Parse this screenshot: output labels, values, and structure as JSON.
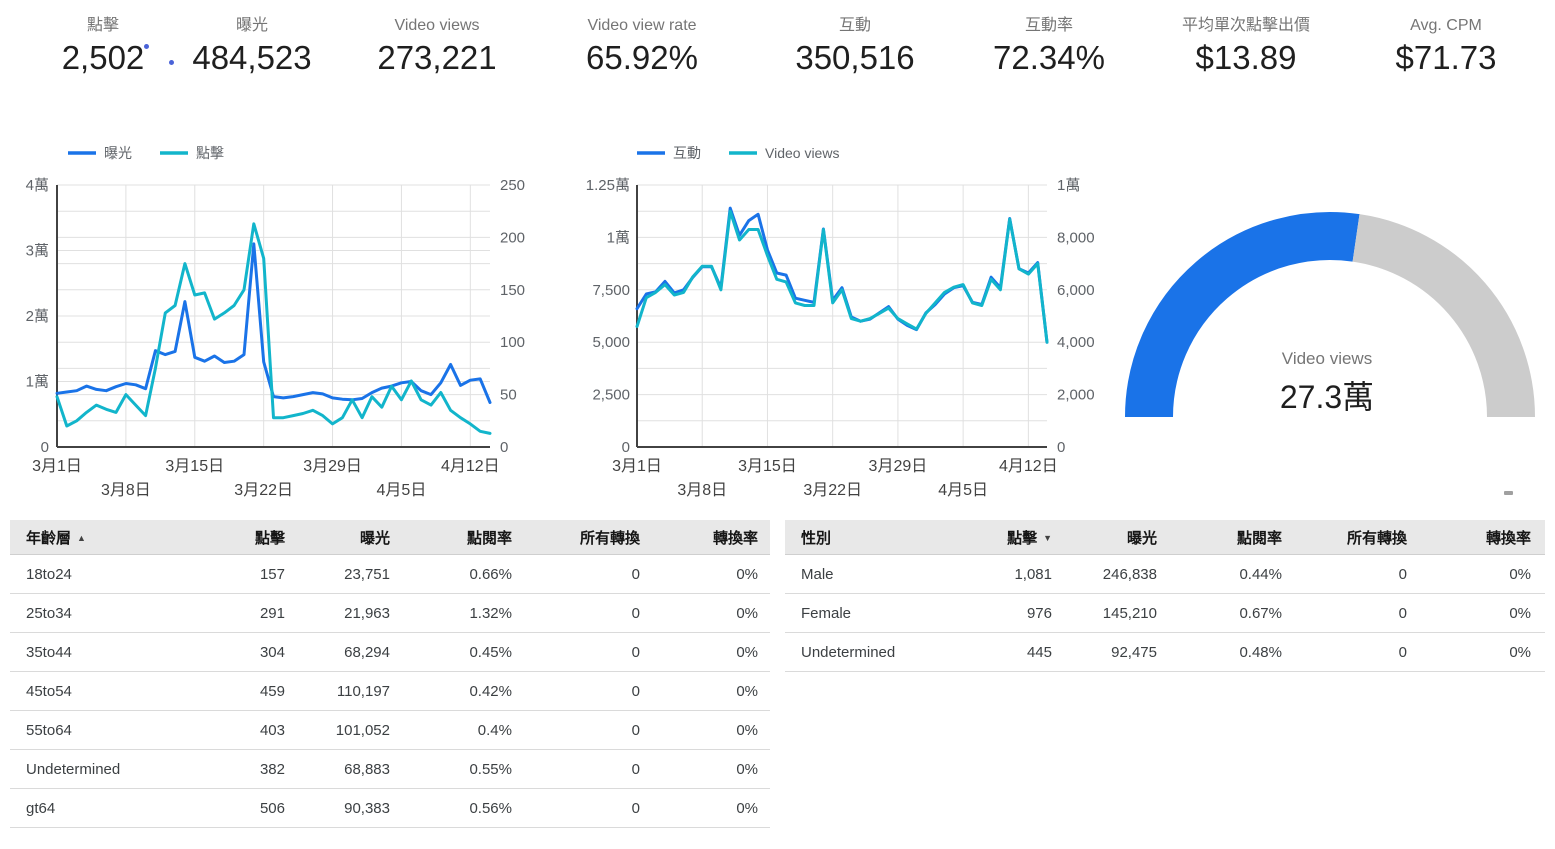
{
  "scorecards": [
    {
      "label": "點擊",
      "value": "2,502"
    },
    {
      "label": "曝光",
      "value": "484,523"
    },
    {
      "label": "Video views",
      "value": "273,221"
    },
    {
      "label": "Video view rate",
      "value": "65.92%"
    },
    {
      "label": "互動",
      "value": "350,516"
    },
    {
      "label": "互動率",
      "value": "72.34%"
    },
    {
      "label": "平均單次點擊出價",
      "value": "$13.89"
    },
    {
      "label": "Avg. CPM",
      "value": "$71.73"
    }
  ],
  "icons": {
    "sort_asc": "▲",
    "sort_desc": "▼",
    "note_dot": "circle"
  },
  "colors": {
    "blue": "#1a73e8",
    "teal": "#12b5cb",
    "grid": "#e0e0e0",
    "axis": "#424242",
    "gauge_blue": "#1a73e8",
    "gauge_track": "#cccccc",
    "label_gray": "#757575",
    "header_bg": "#e8e8e8"
  },
  "chart_data": [
    {
      "type": "line",
      "name": "impressions-clicks-timeseries",
      "days": 45,
      "legend": [
        {
          "label": "曝光",
          "color": "#1a73e8"
        },
        {
          "label": "點擊",
          "color": "#12b5cb"
        }
      ],
      "x_ticks": [
        {
          "label": "3月1日",
          "day": 0,
          "row": 0
        },
        {
          "label": "3月8日",
          "day": 7,
          "row": 1
        },
        {
          "label": "3月15日",
          "day": 14,
          "row": 0
        },
        {
          "label": "3月22日",
          "day": 21,
          "row": 1
        },
        {
          "label": "3月29日",
          "day": 28,
          "row": 0
        },
        {
          "label": "4月5日",
          "day": 35,
          "row": 1
        },
        {
          "label": "4月12日",
          "day": 42,
          "row": 0
        }
      ],
      "left_axis": {
        "max": 40000,
        "ticks": [
          {
            "label": "0",
            "pct": 0
          },
          {
            "label": "1萬",
            "pct": 25
          },
          {
            "label": "2萬",
            "pct": 50
          },
          {
            "label": "3萬",
            "pct": 75
          },
          {
            "label": "4萬",
            "pct": 100
          }
        ]
      },
      "right_axis": {
        "max": 250,
        "ticks": [
          {
            "label": "0",
            "pct": 0
          },
          {
            "label": "50",
            "pct": 20
          },
          {
            "label": "100",
            "pct": 40
          },
          {
            "label": "150",
            "pct": 60
          },
          {
            "label": "200",
            "pct": 80
          },
          {
            "label": "250",
            "pct": 100
          }
        ]
      },
      "grid_pcts": [
        10,
        20,
        25,
        30,
        40,
        50,
        60,
        70,
        75,
        80,
        90,
        100
      ],
      "series": [
        {
          "name": "曝光",
          "axis": "left",
          "color": "#1a73e8",
          "values": [
            8200,
            8400,
            8600,
            9300,
            8800,
            8600,
            9200,
            9700,
            9500,
            8900,
            14700,
            14100,
            14600,
            22200,
            13700,
            13100,
            13900,
            12900,
            13100,
            14100,
            31000,
            13000,
            7700,
            7500,
            7700,
            8000,
            8300,
            8100,
            7500,
            7300,
            7200,
            7400,
            8300,
            9000,
            9300,
            9800,
            10000,
            8600,
            8000,
            9800,
            12600,
            9400,
            10200,
            10400,
            6800
          ]
        },
        {
          "name": "點擊",
          "axis": "right",
          "color": "#12b5cb",
          "values": [
            48,
            20,
            25,
            33,
            40,
            36,
            33,
            50,
            40,
            30,
            75,
            128,
            135,
            175,
            145,
            147,
            122,
            128,
            135,
            150,
            213,
            180,
            28,
            28,
            30,
            32,
            35,
            30,
            22,
            28,
            45,
            28,
            48,
            38,
            58,
            45,
            63,
            45,
            40,
            52,
            35,
            28,
            22,
            15,
            13
          ]
        }
      ]
    },
    {
      "type": "line",
      "name": "engagement-videoviews-timeseries",
      "days": 45,
      "legend": [
        {
          "label": "互動",
          "color": "#1a73e8"
        },
        {
          "label": "Video views",
          "color": "#12b5cb"
        }
      ],
      "x_ticks": [
        {
          "label": "3月1日",
          "day": 0,
          "row": 0
        },
        {
          "label": "3月8日",
          "day": 7,
          "row": 1
        },
        {
          "label": "3月15日",
          "day": 14,
          "row": 0
        },
        {
          "label": "3月22日",
          "day": 21,
          "row": 1
        },
        {
          "label": "3月29日",
          "day": 28,
          "row": 0
        },
        {
          "label": "4月5日",
          "day": 35,
          "row": 1
        },
        {
          "label": "4月12日",
          "day": 42,
          "row": 0
        }
      ],
      "left_axis": {
        "max": 12500,
        "ticks": [
          {
            "label": "0",
            "pct": 0
          },
          {
            "label": "2,500",
            "pct": 20
          },
          {
            "label": "5,000",
            "pct": 40
          },
          {
            "label": "7,500",
            "pct": 60
          },
          {
            "label": "1萬",
            "pct": 80
          },
          {
            "label": "1.25萬",
            "pct": 100
          }
        ]
      },
      "right_axis": {
        "max": 10000,
        "ticks": [
          {
            "label": "0",
            "pct": 0
          },
          {
            "label": "2,000",
            "pct": 20
          },
          {
            "label": "4,000",
            "pct": 40
          },
          {
            "label": "6,000",
            "pct": 60
          },
          {
            "label": "8,000",
            "pct": 80
          },
          {
            "label": "1萬",
            "pct": 100
          }
        ]
      },
      "grid_pcts": [
        10,
        20,
        30,
        40,
        50,
        60,
        70,
        80,
        90,
        100
      ],
      "series": [
        {
          "name": "互動",
          "axis": "left",
          "color": "#1a73e8",
          "values": [
            6600,
            7300,
            7400,
            7900,
            7350,
            7500,
            8100,
            8600,
            8600,
            7600,
            11400,
            10100,
            10800,
            11100,
            9400,
            8300,
            8200,
            7100,
            7000,
            6900,
            10400,
            7000,
            7600,
            6200,
            6000,
            6100,
            6400,
            6700,
            6100,
            5800,
            5600,
            6400,
            6800,
            7300,
            7600,
            7700,
            6900,
            6800,
            8100,
            7600,
            10900,
            8500,
            8300,
            8800,
            5000
          ]
        },
        {
          "name": "Video views",
          "axis": "right",
          "color": "#12b5cb",
          "values": [
            4600,
            5700,
            5900,
            6200,
            5800,
            5900,
            6500,
            6900,
            6900,
            6000,
            9000,
            7900,
            8300,
            8300,
            7300,
            6400,
            6300,
            5500,
            5400,
            5400,
            8300,
            5500,
            6000,
            4900,
            4800,
            4900,
            5100,
            5300,
            4900,
            4700,
            4500,
            5100,
            5500,
            5900,
            6100,
            6200,
            5500,
            5400,
            6400,
            6000,
            8700,
            6800,
            6600,
            7000,
            4000
          ]
        }
      ]
    },
    {
      "type": "gauge",
      "name": "video-views-gauge",
      "label": "Video views",
      "value": "27.3萬",
      "fraction": 0.546,
      "color": "#1a73e8",
      "track_color": "#cccccc"
    }
  ],
  "tables": [
    {
      "name": "age-table",
      "dim_header": "年齡層",
      "sort_col": 0,
      "sort_dir": "asc",
      "metric_headers": [
        "點擊",
        "曝光",
        "點閱率",
        "所有轉換",
        "轉換率"
      ],
      "rows": [
        [
          "18to24",
          "157",
          "23,751",
          "0.66%",
          "0",
          "0%"
        ],
        [
          "25to34",
          "291",
          "21,963",
          "1.32%",
          "0",
          "0%"
        ],
        [
          "35to44",
          "304",
          "68,294",
          "0.45%",
          "0",
          "0%"
        ],
        [
          "45to54",
          "459",
          "110,197",
          "0.42%",
          "0",
          "0%"
        ],
        [
          "55to64",
          "403",
          "101,052",
          "0.4%",
          "0",
          "0%"
        ],
        [
          "Undetermined",
          "382",
          "68,883",
          "0.55%",
          "0",
          "0%"
        ],
        [
          "gt64",
          "506",
          "90,383",
          "0.56%",
          "0",
          "0%"
        ]
      ]
    },
    {
      "name": "gender-table",
      "dim_header": "性別",
      "sort_col": 1,
      "sort_dir": "desc",
      "metric_headers": [
        "點擊",
        "曝光",
        "點閱率",
        "所有轉換",
        "轉換率"
      ],
      "rows": [
        [
          "Male",
          "1,081",
          "246,838",
          "0.44%",
          "0",
          "0%"
        ],
        [
          "Female",
          "976",
          "145,210",
          "0.67%",
          "0",
          "0%"
        ],
        [
          "Undetermined",
          "445",
          "92,475",
          "0.48%",
          "0",
          "0%"
        ]
      ]
    }
  ]
}
